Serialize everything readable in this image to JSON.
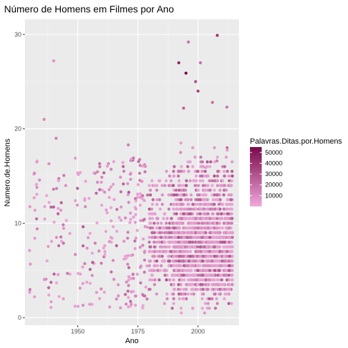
{
  "chart_data": {
    "type": "scatter",
    "title": "Número de Homens em Filmes por Ano",
    "xlabel": "Ano",
    "ylabel": "Numero.de.Homens",
    "xlim": [
      1928,
      2017
    ],
    "ylim": [
      -0.8,
      31.6
    ],
    "x_ticks": [
      1950,
      1975,
      2000
    ],
    "y_ticks": [
      0,
      10,
      20,
      30
    ],
    "grid": true,
    "panel_background": "#ebebeb",
    "legend": {
      "title": "Palavras.Ditas.por.Homens",
      "placement": "right",
      "ticks": [
        10000,
        20000,
        30000,
        40000,
        50000
      ],
      "range": [
        0,
        55000
      ],
      "low_color": "#f0a8dc",
      "high_color": "#7a0a4a"
    },
    "highlighted_points": [
      {
        "x": 1940,
        "y": 27.2,
        "words": 9000
      },
      {
        "x": 1936,
        "y": 21.0,
        "words": 12000
      },
      {
        "x": 1941,
        "y": 19.0,
        "words": 15000
      },
      {
        "x": 1938,
        "y": 16.3,
        "words": 9000
      },
      {
        "x": 1932,
        "y": 15.3,
        "words": 11000
      },
      {
        "x": 1933,
        "y": 13.8,
        "words": 10000
      },
      {
        "x": 1945,
        "y": 14.0,
        "words": 9000
      },
      {
        "x": 1930,
        "y": 2.7,
        "words": 5000
      },
      {
        "x": 1932,
        "y": 2.2,
        "words": 5000
      },
      {
        "x": 1944,
        "y": 2.0,
        "words": 5000
      },
      {
        "x": 1996,
        "y": 29.2,
        "words": 18000
      },
      {
        "x": 2008,
        "y": 29.9,
        "words": 40000
      },
      {
        "x": 1992,
        "y": 27.0,
        "words": 45000
      },
      {
        "x": 2001,
        "y": 27.0,
        "words": 20000
      },
      {
        "x": 1995,
        "y": 25.9,
        "words": 55000
      },
      {
        "x": 1999,
        "y": 25.0,
        "words": 30000
      },
      {
        "x": 2000,
        "y": 24.0,
        "words": 35000
      },
      {
        "x": 2006,
        "y": 22.8,
        "words": 20000
      },
      {
        "x": 1994,
        "y": 22.2,
        "words": 25000
      },
      {
        "x": 2012,
        "y": 22.3,
        "words": 18000
      },
      {
        "x": 1971,
        "y": 18.3,
        "words": 15000
      }
    ],
    "bulk_distribution": {
      "words_range": [
        2000,
        30000
      ],
      "base_color": "#e88bcf",
      "count_by_decade": [
        {
          "decade": 1930,
          "count": 30
        },
        {
          "decade": 1940,
          "count": 30
        },
        {
          "decade": 1950,
          "count": 45
        },
        {
          "decade": 1960,
          "count": 55
        },
        {
          "decade": 1970,
          "count": 100
        },
        {
          "decade": 1980,
          "count": 230
        },
        {
          "decade": 1990,
          "count": 650
        },
        {
          "decade": 2000,
          "count": 800
        },
        {
          "decade": 2010,
          "count": 300
        }
      ],
      "y_mode": 7,
      "y_spread": 4
    }
  }
}
